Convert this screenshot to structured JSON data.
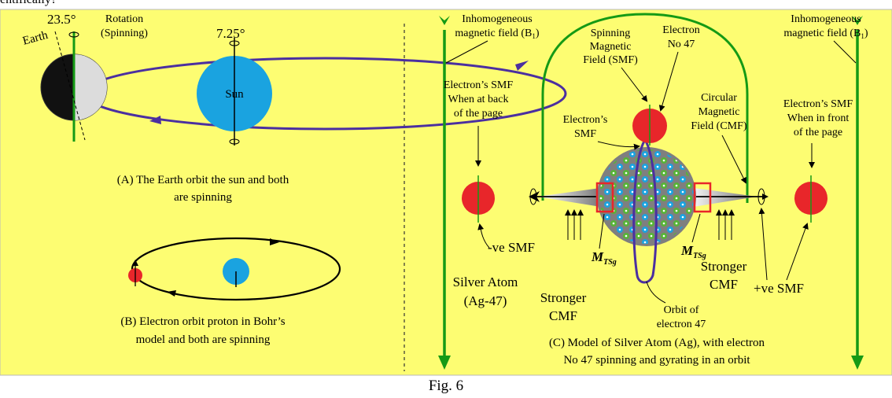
{
  "top_text": "entifically?",
  "colors": {
    "panel": "#fdfd72",
    "border": "#b9b9b9",
    "arrow_green": "#159a15",
    "electron_red": "#e8262a",
    "sun_blue": "#1aa3e0",
    "orbit_purple": "#4b2fa0",
    "nucleus_grey": "#7f7f7f"
  },
  "panel_a": {
    "tilt_earth": "23.5°",
    "tilt_sun": "7.25°",
    "rotation_label": [
      "Rotation",
      "(Spinning)"
    ],
    "earth_label": "Earth",
    "sun_label": "Sun",
    "caption": [
      "(A) The Earth orbit the sun and both",
      "are spinning"
    ]
  },
  "panel_b": {
    "caption": [
      "(B) Electron orbit proton in Bohr’s",
      "model and both are spinning"
    ]
  },
  "panel_c": {
    "field_left": [
      "Inhomogeneous",
      "magnetic field (B"
    ],
    "field_right": [
      "Inhomogeneous",
      "magnetic field (B"
    ],
    "field_subscript": "1",
    "field_close": ")",
    "smf_back": [
      "Electron’s SMF",
      "When at back",
      "of the page"
    ],
    "smf_front": [
      "Electron’s SMF",
      "When in front",
      "of the page"
    ],
    "spinning_field": [
      "Spinning",
      "Magnetic",
      "Field (SMF)"
    ],
    "electron_no": [
      "Electron",
      "No 47"
    ],
    "electrons_smf": [
      "Electron’s",
      "SMF"
    ],
    "circular_field": [
      "Circular",
      "Magnetic",
      "Field (CMF)"
    ],
    "neg_smf": "-ve SMF",
    "pos_smf": "+ve SMF",
    "silver_atom": [
      "Silver Atom",
      "(Ag-47)"
    ],
    "stronger_cmf": [
      "Stronger",
      "CMF"
    ],
    "mtsg_main": "M",
    "mtsg_sub": "TSg",
    "orbit_label": [
      "Orbit of",
      "electron 47"
    ],
    "caption": [
      "(C) Model of Silver Atom (Ag), with electron",
      "No 47 spinning and gyrating in an orbit"
    ]
  },
  "figure_label": "Fig. 6"
}
